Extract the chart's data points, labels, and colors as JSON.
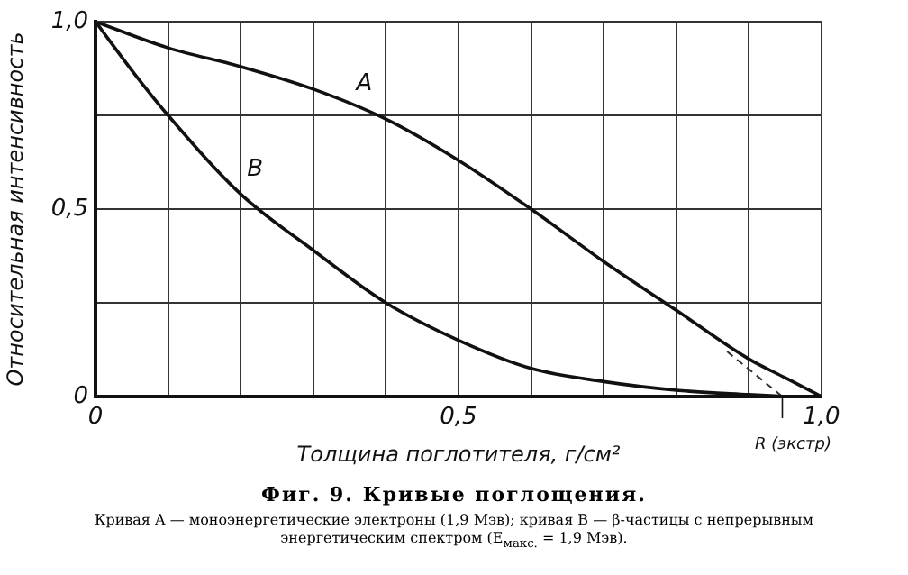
{
  "chart_data": {
    "type": "line",
    "title": "Фиг. 9. Кривые поглощения.",
    "xlabel": "Толщина поглотителя, г/см²",
    "ylabel": "Относительная интенсивность",
    "xlim": [
      0,
      1
    ],
    "ylim": [
      0,
      1
    ],
    "xticks": [
      0,
      {
        "value": 0.1,
        "label": null
      },
      {
        "value": 0.2,
        "label": null
      },
      {
        "value": 0.3,
        "label": null
      },
      {
        "value": 0.4,
        "label": null
      },
      {
        "value": 0.5,
        "label": "0,5"
      },
      {
        "value": 0.6,
        "label": null
      },
      {
        "value": 0.7,
        "label": null
      },
      {
        "value": 0.8,
        "label": null
      },
      {
        "value": 0.9,
        "label": null
      },
      {
        "value": 1,
        "label": "1,0"
      }
    ],
    "yticks": [
      0,
      {
        "value": 0.25,
        "label": null
      },
      {
        "value": 0.5,
        "label": "0,5"
      },
      {
        "value": 0.75,
        "label": null
      },
      {
        "value": 1,
        "label": "1,0"
      }
    ],
    "grid": true,
    "legend": false,
    "marker": "none",
    "series": [
      {
        "name": "A",
        "color": "#111111",
        "x": [
          0,
          0.1,
          0.2,
          0.3,
          0.4,
          0.5,
          0.6,
          0.7,
          0.8,
          0.9,
          0.95,
          1
        ],
        "values": [
          1,
          0.93,
          0.88,
          0.82,
          0.74,
          0.63,
          0.5,
          0.36,
          0.23,
          0.1,
          0.05,
          0
        ]
      },
      {
        "name": "B",
        "color": "#111111",
        "x": [
          0,
          0.05,
          0.1,
          0.2,
          0.3,
          0.4,
          0.5,
          0.6,
          0.7,
          0.8,
          0.9,
          0.95
        ],
        "values": [
          1,
          0.87,
          0.75,
          0.54,
          0.39,
          0.25,
          0.15,
          0.075,
          0.04,
          0.017,
          0.005,
          0
        ]
      },
      {
        "color": "#333333",
        "line_style": "dashed",
        "x": [
          0.87,
          0.946
        ],
        "values": [
          0.12,
          0
        ]
      }
    ],
    "annotations": [
      {
        "text": "R (экстр)",
        "x": 0.946,
        "y": 0
      },
      "Кривая A — моноэнергетические электроны (1,9 Мэв); кривая B — β-частицы с непрерывным энергетическим спектром (E$_{макс.}$ = 1,9 Мэв)."
    ]
  }
}
